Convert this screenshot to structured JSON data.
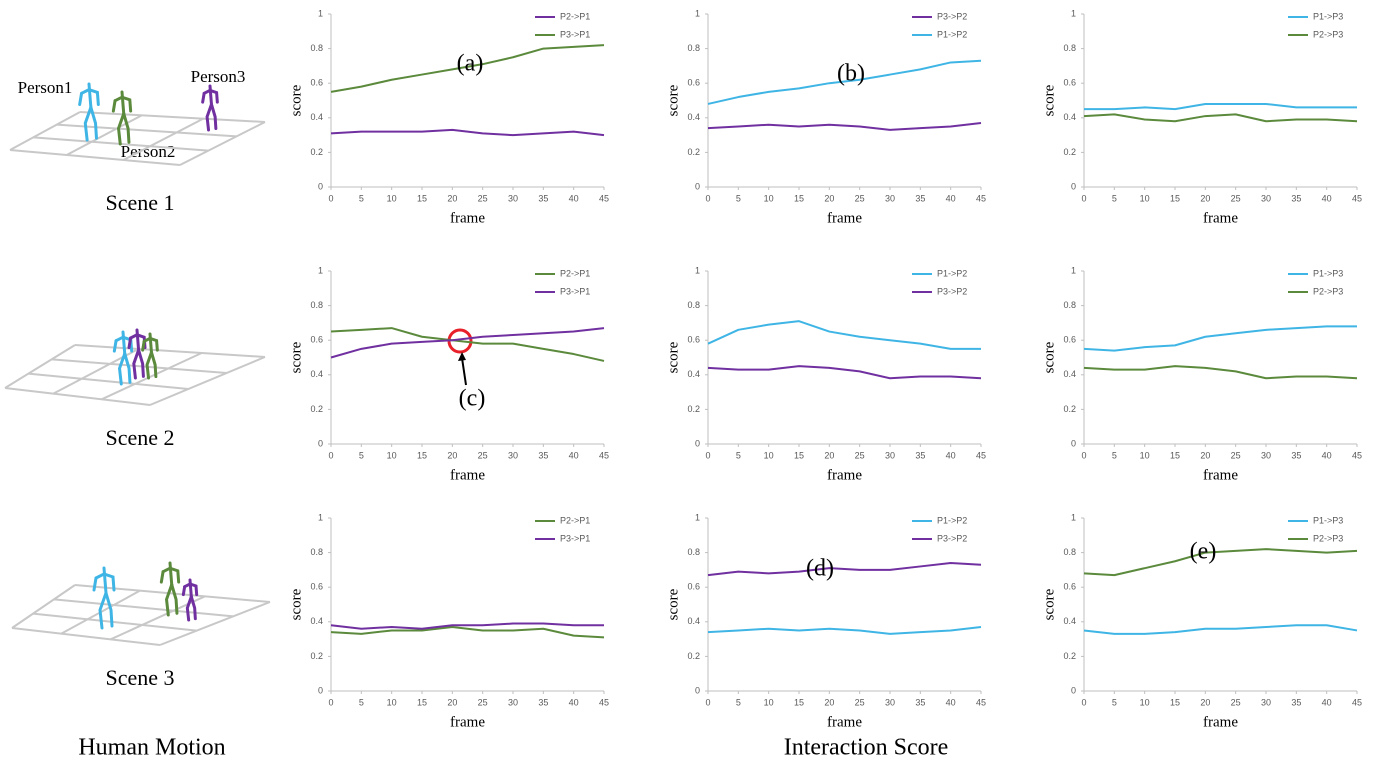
{
  "figure": {
    "scenes": [
      {
        "label": "Scene 1",
        "persons": [
          "Person1",
          "Person2",
          "Person3"
        ]
      },
      {
        "label": "Scene 2"
      },
      {
        "label": "Scene 3"
      }
    ],
    "left_caption": "Human Motion",
    "right_caption": "Interaction Score"
  },
  "chart_data": [
    {
      "type": "line",
      "annotation": "(a)",
      "xlabel": "frame",
      "ylabel": "score",
      "x": [
        0,
        5,
        10,
        15,
        20,
        25,
        30,
        35,
        40,
        45
      ],
      "xlim": [
        0,
        45
      ],
      "xticks": [
        0,
        5,
        10,
        15,
        20,
        25,
        30,
        35,
        40,
        45
      ],
      "ylim": [
        0,
        1
      ],
      "yticks": [
        0,
        0.2,
        0.4,
        0.6,
        0.8,
        1
      ],
      "legend": "top-right",
      "series": [
        {
          "name": "P2->P1",
          "color": "#7030a0",
          "values": [
            0.31,
            0.32,
            0.32,
            0.32,
            0.33,
            0.31,
            0.3,
            0.31,
            0.32,
            0.3
          ]
        },
        {
          "name": "P3->P1",
          "color": "#5b8a3c",
          "values": [
            0.55,
            0.58,
            0.62,
            0.65,
            0.68,
            0.71,
            0.75,
            0.8,
            0.81,
            0.82
          ]
        }
      ]
    },
    {
      "type": "line",
      "annotation": "(b)",
      "xlabel": "frame",
      "ylabel": "score",
      "x": [
        0,
        5,
        10,
        15,
        20,
        25,
        30,
        35,
        40,
        45
      ],
      "xlim": [
        0,
        45
      ],
      "xticks": [
        0,
        5,
        10,
        15,
        20,
        25,
        30,
        35,
        40,
        45
      ],
      "ylim": [
        0,
        1
      ],
      "yticks": [
        0,
        0.2,
        0.4,
        0.6,
        0.8,
        1
      ],
      "legend": "top-right",
      "series": [
        {
          "name": "P3->P2",
          "color": "#7030a0",
          "values": [
            0.34,
            0.35,
            0.36,
            0.35,
            0.36,
            0.35,
            0.33,
            0.34,
            0.35,
            0.37
          ]
        },
        {
          "name": "P1->P2",
          "color": "#3fb5e5",
          "values": [
            0.48,
            0.52,
            0.55,
            0.57,
            0.6,
            0.62,
            0.65,
            0.68,
            0.72,
            0.73
          ]
        }
      ]
    },
    {
      "type": "line",
      "xlabel": "frame",
      "ylabel": "score",
      "x": [
        0,
        5,
        10,
        15,
        20,
        25,
        30,
        35,
        40,
        45
      ],
      "xlim": [
        0,
        45
      ],
      "xticks": [
        0,
        5,
        10,
        15,
        20,
        25,
        30,
        35,
        40,
        45
      ],
      "ylim": [
        0,
        1
      ],
      "yticks": [
        0,
        0.2,
        0.4,
        0.6,
        0.8,
        1
      ],
      "legend": "top-right",
      "series": [
        {
          "name": "P1->P3",
          "color": "#3fb5e5",
          "values": [
            0.45,
            0.45,
            0.46,
            0.45,
            0.48,
            0.48,
            0.48,
            0.46,
            0.46,
            0.46
          ]
        },
        {
          "name": "P2->P3",
          "color": "#5b8a3c",
          "values": [
            0.41,
            0.42,
            0.39,
            0.38,
            0.41,
            0.42,
            0.38,
            0.39,
            0.39,
            0.38
          ]
        }
      ]
    },
    {
      "type": "line",
      "annotation": "(c)",
      "xlabel": "frame",
      "ylabel": "score",
      "x": [
        0,
        5,
        10,
        15,
        20,
        25,
        30,
        35,
        40,
        45
      ],
      "xlim": [
        0,
        45
      ],
      "xticks": [
        0,
        5,
        10,
        15,
        20,
        25,
        30,
        35,
        40,
        45
      ],
      "ylim": [
        0,
        1
      ],
      "yticks": [
        0,
        0.2,
        0.4,
        0.6,
        0.8,
        1
      ],
      "legend": "top-right",
      "series": [
        {
          "name": "P2->P1",
          "color": "#5b8a3c",
          "values": [
            0.65,
            0.66,
            0.67,
            0.62,
            0.6,
            0.58,
            0.58,
            0.55,
            0.52,
            0.48
          ]
        },
        {
          "name": "P3->P1",
          "color": "#7030a0",
          "values": [
            0.5,
            0.55,
            0.58,
            0.59,
            0.6,
            0.62,
            0.63,
            0.64,
            0.65,
            0.67
          ]
        }
      ]
    },
    {
      "type": "line",
      "xlabel": "frame",
      "ylabel": "score",
      "x": [
        0,
        5,
        10,
        15,
        20,
        25,
        30,
        35,
        40,
        45
      ],
      "xlim": [
        0,
        45
      ],
      "xticks": [
        0,
        5,
        10,
        15,
        20,
        25,
        30,
        35,
        40,
        45
      ],
      "ylim": [
        0,
        1
      ],
      "yticks": [
        0,
        0.2,
        0.4,
        0.6,
        0.8,
        1
      ],
      "legend": "top-right",
      "series": [
        {
          "name": "P1->P2",
          "color": "#3fb5e5",
          "values": [
            0.58,
            0.66,
            0.69,
            0.71,
            0.65,
            0.62,
            0.6,
            0.58,
            0.55,
            0.55
          ]
        },
        {
          "name": "P3->P2",
          "color": "#7030a0",
          "values": [
            0.44,
            0.43,
            0.43,
            0.45,
            0.44,
            0.42,
            0.38,
            0.39,
            0.39,
            0.38
          ]
        }
      ]
    },
    {
      "type": "line",
      "xlabel": "frame",
      "ylabel": "score",
      "x": [
        0,
        5,
        10,
        15,
        20,
        25,
        30,
        35,
        40,
        45
      ],
      "xlim": [
        0,
        45
      ],
      "xticks": [
        0,
        5,
        10,
        15,
        20,
        25,
        30,
        35,
        40,
        45
      ],
      "ylim": [
        0,
        1
      ],
      "yticks": [
        0,
        0.2,
        0.4,
        0.6,
        0.8,
        1
      ],
      "legend": "top-right",
      "series": [
        {
          "name": "P1->P3",
          "color": "#3fb5e5",
          "values": [
            0.55,
            0.54,
            0.56,
            0.57,
            0.62,
            0.64,
            0.66,
            0.67,
            0.68,
            0.68
          ]
        },
        {
          "name": "P2->P3",
          "color": "#5b8a3c",
          "values": [
            0.44,
            0.43,
            0.43,
            0.45,
            0.44,
            0.42,
            0.38,
            0.39,
            0.39,
            0.38
          ]
        }
      ]
    },
    {
      "type": "line",
      "xlabel": "frame",
      "ylabel": "score",
      "x": [
        0,
        5,
        10,
        15,
        20,
        25,
        30,
        35,
        40,
        45
      ],
      "xlim": [
        0,
        45
      ],
      "xticks": [
        0,
        5,
        10,
        15,
        20,
        25,
        30,
        35,
        40,
        45
      ],
      "ylim": [
        0,
        1
      ],
      "yticks": [
        0,
        0.2,
        0.4,
        0.6,
        0.8,
        1
      ],
      "legend": "top-right",
      "series": [
        {
          "name": "P2->P1",
          "color": "#5b8a3c",
          "values": [
            0.34,
            0.33,
            0.35,
            0.35,
            0.37,
            0.35,
            0.35,
            0.36,
            0.32,
            0.31
          ]
        },
        {
          "name": "P3->P1",
          "color": "#7030a0",
          "values": [
            0.38,
            0.36,
            0.37,
            0.36,
            0.38,
            0.38,
            0.39,
            0.39,
            0.38,
            0.38
          ]
        }
      ]
    },
    {
      "type": "line",
      "annotation": "(d)",
      "xlabel": "frame",
      "ylabel": "score",
      "x": [
        0,
        5,
        10,
        15,
        20,
        25,
        30,
        35,
        40,
        45
      ],
      "xlim": [
        0,
        45
      ],
      "xticks": [
        0,
        5,
        10,
        15,
        20,
        25,
        30,
        35,
        40,
        45
      ],
      "ylim": [
        0,
        1
      ],
      "yticks": [
        0,
        0.2,
        0.4,
        0.6,
        0.8,
        1
      ],
      "legend": "top-right",
      "series": [
        {
          "name": "P1->P2",
          "color": "#3fb5e5",
          "values": [
            0.34,
            0.35,
            0.36,
            0.35,
            0.36,
            0.35,
            0.33,
            0.34,
            0.35,
            0.37
          ]
        },
        {
          "name": "P3->P2",
          "color": "#7030a0",
          "values": [
            0.67,
            0.69,
            0.68,
            0.69,
            0.71,
            0.7,
            0.7,
            0.72,
            0.74,
            0.73
          ]
        }
      ]
    },
    {
      "type": "line",
      "annotation": "(e)",
      "xlabel": "frame",
      "ylabel": "score",
      "x": [
        0,
        5,
        10,
        15,
        20,
        25,
        30,
        35,
        40,
        45
      ],
      "xlim": [
        0,
        45
      ],
      "xticks": [
        0,
        5,
        10,
        15,
        20,
        25,
        30,
        35,
        40,
        45
      ],
      "ylim": [
        0,
        1
      ],
      "yticks": [
        0,
        0.2,
        0.4,
        0.6,
        0.8,
        1
      ],
      "legend": "top-right",
      "series": [
        {
          "name": "P1->P3",
          "color": "#3fb5e5",
          "values": [
            0.35,
            0.33,
            0.33,
            0.34,
            0.36,
            0.36,
            0.37,
            0.38,
            0.38,
            0.35
          ]
        },
        {
          "name": "P2->P3",
          "color": "#5b8a3c",
          "values": [
            0.68,
            0.67,
            0.71,
            0.75,
            0.8,
            0.81,
            0.82,
            0.81,
            0.8,
            0.81
          ]
        }
      ]
    }
  ]
}
